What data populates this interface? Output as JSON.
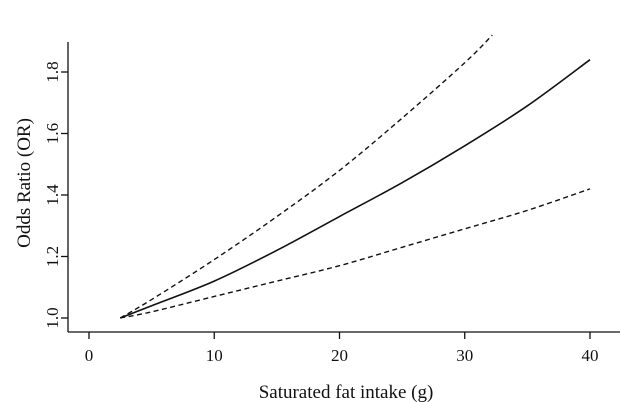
{
  "chart_data": {
    "type": "line",
    "title": "",
    "xlabel": "Saturated fat intake (g)",
    "ylabel": "Odds Ratio (OR)",
    "xlim": [
      -1,
      43
    ],
    "ylim": [
      0.98,
      1.88
    ],
    "xticks": [
      0,
      10,
      20,
      30,
      40
    ],
    "xtick_labels": [
      "0",
      "10",
      "20",
      "30",
      "40"
    ],
    "yticks": [
      1.0,
      1.2,
      1.4,
      1.6,
      1.8
    ],
    "ytick_labels": [
      "1.0",
      "1.2",
      "1.4",
      "1.6",
      "1.8"
    ],
    "grid": false,
    "legend": "none",
    "series": [
      {
        "style": "solid",
        "color": "#111111",
        "x": [
          2.5,
          5,
          10,
          15,
          20,
          25,
          30,
          35,
          40
        ],
        "y": [
          1.0,
          1.04,
          1.12,
          1.22,
          1.33,
          1.44,
          1.56,
          1.69,
          1.84
        ]
      },
      {
        "style": "dashed",
        "color": "#111111",
        "x": [
          2.5,
          5,
          10,
          15,
          20,
          25,
          30,
          32.2
        ],
        "y": [
          1.0,
          1.06,
          1.19,
          1.33,
          1.48,
          1.65,
          1.83,
          1.92
        ]
      },
      {
        "style": "dashed",
        "color": "#111111",
        "x": [
          2.5,
          5,
          10,
          15,
          20,
          25,
          30,
          35,
          40
        ],
        "y": [
          1.0,
          1.02,
          1.07,
          1.12,
          1.17,
          1.23,
          1.29,
          1.35,
          1.42
        ]
      }
    ]
  }
}
